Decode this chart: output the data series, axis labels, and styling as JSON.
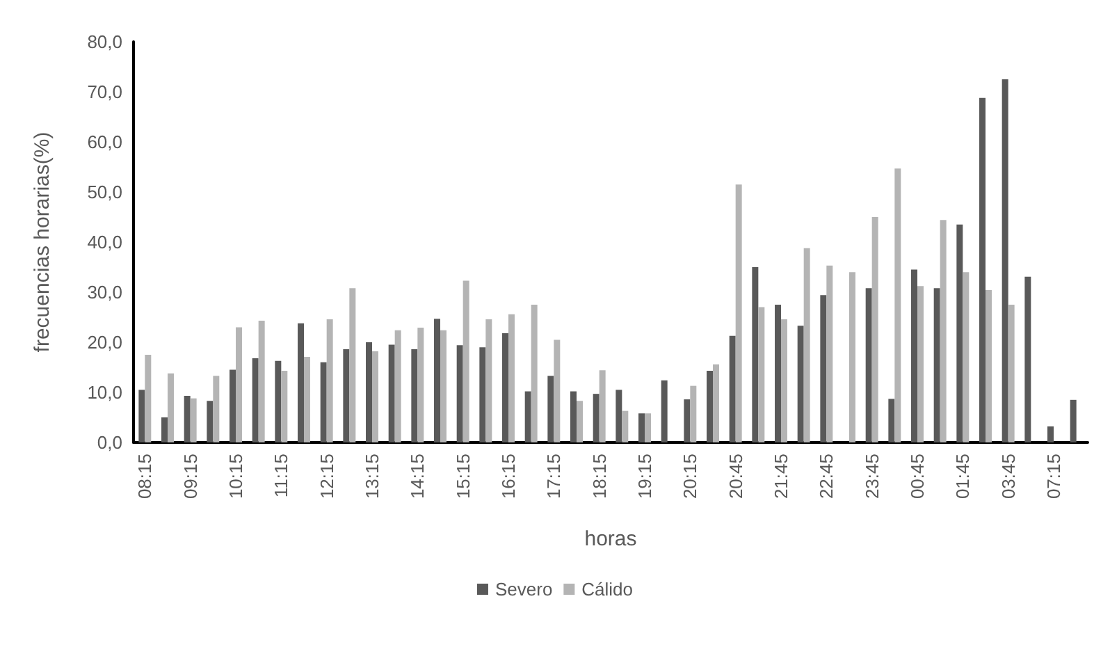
{
  "chart_data": {
    "type": "bar",
    "xlabel": "horas",
    "ylabel": "frecuencias horarias(%)",
    "categories": [
      "08:15",
      null,
      "09:15",
      null,
      "10:15",
      null,
      "11:15",
      null,
      "12:15",
      null,
      "13:15",
      null,
      "14:15",
      null,
      "15:15",
      null,
      "16:15",
      null,
      "17:15",
      null,
      "18:15",
      null,
      "19:15",
      null,
      "20:15",
      null,
      "20:45",
      null,
      "21:45",
      null,
      "22:45",
      null,
      "23:45",
      null,
      "00:45",
      null,
      "01:45",
      null,
      "03:45",
      null,
      "07:15",
      null
    ],
    "series": [
      {
        "name": "Severo",
        "color": "#595959",
        "values": [
          10.5,
          5,
          9.3,
          8.3,
          14.5,
          16.8,
          16.3,
          23.8,
          16,
          18.6,
          20,
          19.5,
          18.6,
          24.7,
          19.4,
          19,
          21.8,
          10.2,
          13.3,
          10.2,
          9.7,
          10.5,
          5.8,
          12.4,
          8.6,
          14.3,
          21.3,
          35,
          27.5,
          23.3,
          29.4,
          null,
          30.8,
          8.7,
          34.5,
          30.8,
          43.5,
          68.8,
          72.5,
          33.1,
          3.2,
          8.5
        ]
      },
      {
        "name": "Cálido",
        "color": "#b4b4b4",
        "values": [
          17.5,
          13.8,
          8.8,
          13.3,
          23,
          24.3,
          14.3,
          17.1,
          24.6,
          30.8,
          18.2,
          22.4,
          22.9,
          22.4,
          32.3,
          24.6,
          25.6,
          27.5,
          20.5,
          8.3,
          14.4,
          6.3,
          5.8,
          null,
          11.3,
          15.6,
          51.5,
          27,
          24.6,
          38.8,
          35.3,
          34,
          45,
          54.7,
          31.2,
          44.4,
          34,
          30.4,
          27.5,
          null,
          null,
          null
        ]
      }
    ],
    "ylim": [
      0,
      80
    ],
    "yticks": [
      {
        "value": 0,
        "label": "0,0"
      },
      {
        "value": 10,
        "label": "10,0"
      },
      {
        "value": 20,
        "label": "20,0"
      },
      {
        "value": 30,
        "label": "30,0"
      },
      {
        "value": 40,
        "label": "40,0"
      },
      {
        "value": 50,
        "label": "50,0"
      },
      {
        "value": 60,
        "label": "60,0"
      },
      {
        "value": 70,
        "label": "70,0"
      },
      {
        "value": 80,
        "label": "80,0"
      }
    ],
    "grid": false,
    "legend": "bottom"
  }
}
